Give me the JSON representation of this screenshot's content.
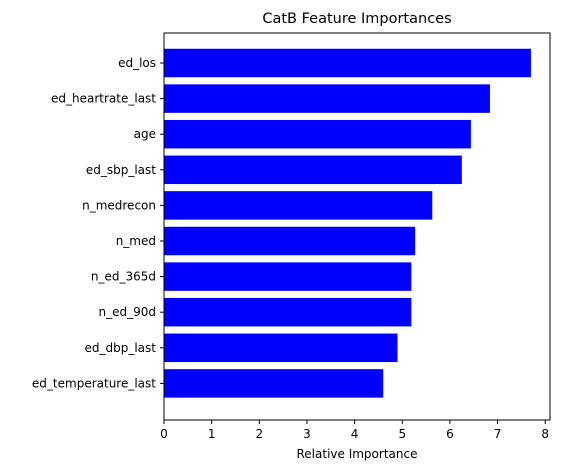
{
  "chart_data": {
    "type": "bar",
    "orientation": "horizontal",
    "title": "CatB Feature Importances",
    "xlabel": "Relative Importance",
    "ylabel": "",
    "xlim": [
      0,
      8.1
    ],
    "xticks": [
      0,
      1,
      2,
      3,
      4,
      5,
      6,
      7,
      8
    ],
    "grid": false,
    "bar_color": "#0000ff",
    "categories": [
      "ed_los",
      "ed_heartrate_last",
      "age",
      "ed_sbp_last",
      "n_medrecon",
      "n_med",
      "n_ed_365d",
      "n_ed_90d",
      "ed_dbp_last",
      "ed_temperature_last"
    ],
    "values": [
      7.7,
      6.84,
      6.44,
      6.25,
      5.63,
      5.27,
      5.19,
      5.19,
      4.9,
      4.6
    ]
  }
}
